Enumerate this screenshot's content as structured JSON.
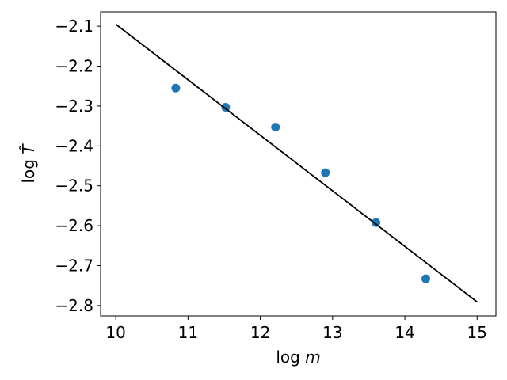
{
  "chart_data": {
    "type": "scatter",
    "xlabel": "log m",
    "ylabel": "log T̂",
    "xlim": [
      9.79,
      15.26
    ],
    "ylim": [
      -2.826,
      -2.064
    ],
    "x_ticks": [
      10,
      11,
      12,
      13,
      14,
      15
    ],
    "y_ticks": [
      -2.1,
      -2.2,
      -2.3,
      -2.4,
      -2.5,
      -2.6,
      -2.7,
      -2.8
    ],
    "x_tick_labels": [
      "10",
      "11",
      "12",
      "13",
      "14",
      "15"
    ],
    "y_tick_labels": [
      "−2.1",
      "−2.2",
      "−2.3",
      "−2.4",
      "−2.5",
      "−2.6",
      "−2.7",
      "−2.8"
    ],
    "grid": false,
    "series": [
      {
        "kind": "scatter",
        "color": "#1f77b4",
        "x": [
          10.83,
          11.52,
          12.21,
          12.9,
          13.6,
          14.29
        ],
        "y": [
          -2.255,
          -2.303,
          -2.353,
          -2.467,
          -2.592,
          -2.733
        ]
      },
      {
        "kind": "line",
        "color": "#000000",
        "x": [
          10.0,
          15.0
        ],
        "y": [
          -2.095,
          -2.791
        ]
      }
    ]
  }
}
